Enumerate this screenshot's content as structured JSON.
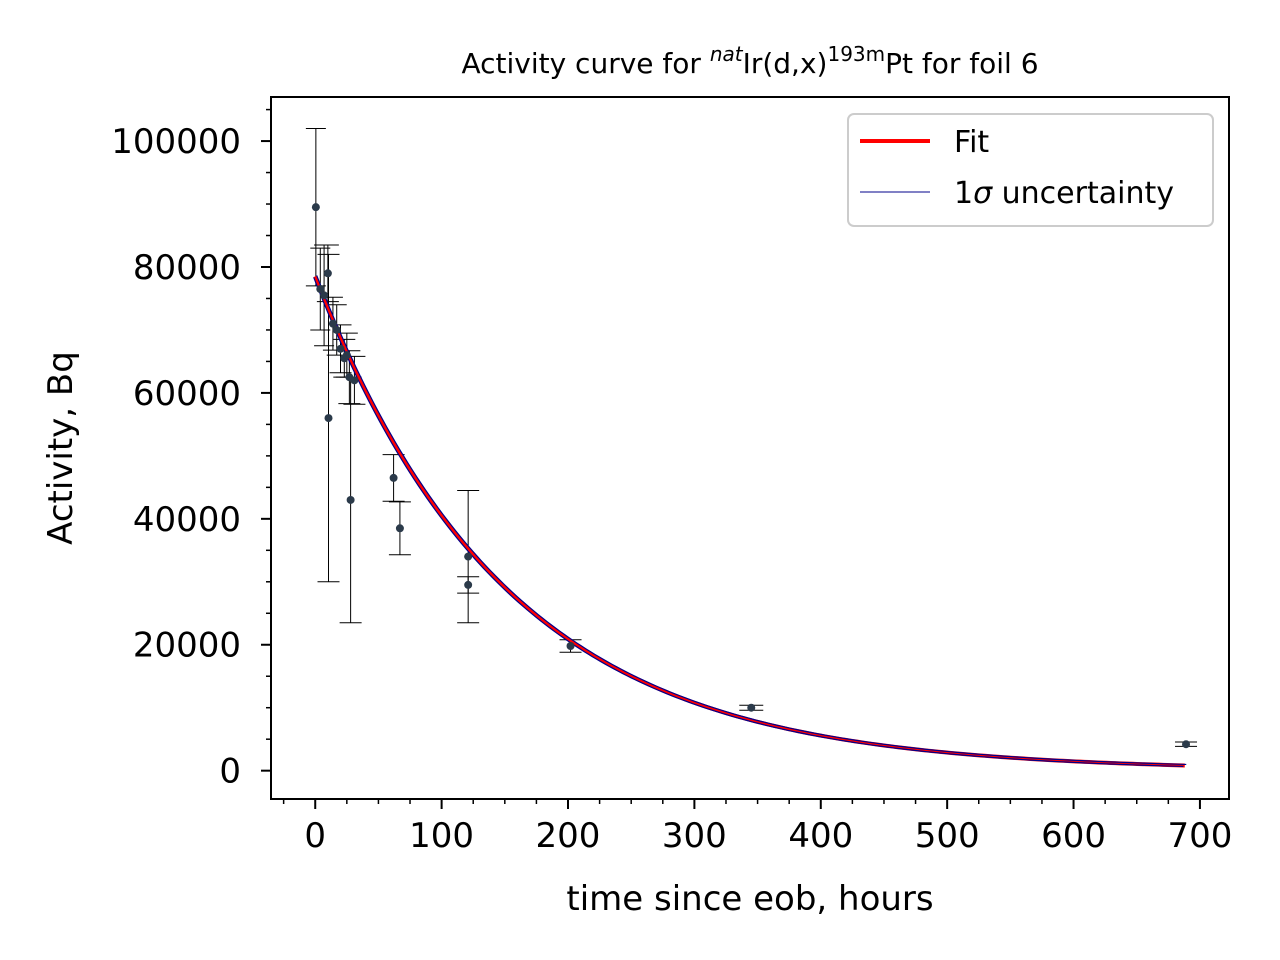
{
  "chart_data": {
    "type": "scatter",
    "title": {
      "prefix": "Activity curve for ",
      "sup1": "nat",
      "mid": "Ir(d,x)",
      "sup2": "193m",
      "suffix": "Pt for foil 6"
    },
    "xlabel": "time since eob, hours",
    "ylabel": "Activity, Bq",
    "xlim": [
      -35,
      723
    ],
    "ylim": [
      -4500,
      107000
    ],
    "xticks": [
      "0",
      "100",
      "200",
      "300",
      "400",
      "500",
      "600",
      "700"
    ],
    "yticks": [
      "0",
      "20000",
      "40000",
      "60000",
      "80000",
      "100000"
    ],
    "legend": {
      "location": "top-right",
      "entries": [
        {
          "label": "Fit",
          "color": "#ff0000"
        },
        {
          "label_prefix": "1",
          "label_symbol": "σ",
          "label_suffix": " uncertainty",
          "color": "#00008b"
        }
      ]
    },
    "fit": {
      "model": "exponential decay",
      "A0": 78500,
      "half_life_hours": 104.8,
      "x_range": [
        0,
        688
      ],
      "color": "#ff0000",
      "band_color": "#00008b"
    },
    "points": [
      {
        "x": 0.5,
        "y": 89500,
        "yerr": 12500,
        "xerr": 10
      },
      {
        "x": 4,
        "y": 76500,
        "yerr": 6500,
        "xerr": 10
      },
      {
        "x": 7,
        "y": 75500,
        "yerr": 8000,
        "xerr": 10
      },
      {
        "x": 10,
        "y": 79000,
        "yerr": 4500,
        "xerr": 11
      },
      {
        "x": 10.5,
        "y": 56000,
        "yerr": 26000,
        "xerr": 11
      },
      {
        "x": 14,
        "y": 71000,
        "yerr": 4200,
        "xerr": 10
      },
      {
        "x": 17,
        "y": 70000,
        "yerr": 4000,
        "xerr": 10
      },
      {
        "x": 20,
        "y": 67000,
        "yerr": 3800,
        "xerr": 11
      },
      {
        "x": 23,
        "y": 65500,
        "yerr": 3000,
        "xerr": 11
      },
      {
        "x": 25,
        "y": 66000,
        "yerr": 3500,
        "xerr": 11
      },
      {
        "x": 27,
        "y": 62500,
        "yerr": 4200,
        "xerr": 11
      },
      {
        "x": 28,
        "y": 43000,
        "yerr": 19500,
        "xerr": 11
      },
      {
        "x": 31,
        "y": 62000,
        "yerr": 3800,
        "xerr": 11
      },
      {
        "x": 62,
        "y": 46500,
        "yerr": 3700,
        "xerr": 11
      },
      {
        "x": 67,
        "y": 38500,
        "yerr": 4200,
        "xerr": 11
      },
      {
        "x": 121,
        "y": 34000,
        "yerr": 10500,
        "xerr": 11
      },
      {
        "x": 121,
        "y": 29500,
        "yerr": 1300,
        "xerr": 11
      },
      {
        "x": 202,
        "y": 19800,
        "yerr": 1000,
        "xerr": 11
      },
      {
        "x": 345,
        "y": 10000,
        "yerr": 400,
        "xerr": 12
      },
      {
        "x": 689,
        "y": 4200,
        "yerr": 350,
        "xerr": 11
      }
    ],
    "marker_color": "#2b3a4a",
    "grid": false
  }
}
